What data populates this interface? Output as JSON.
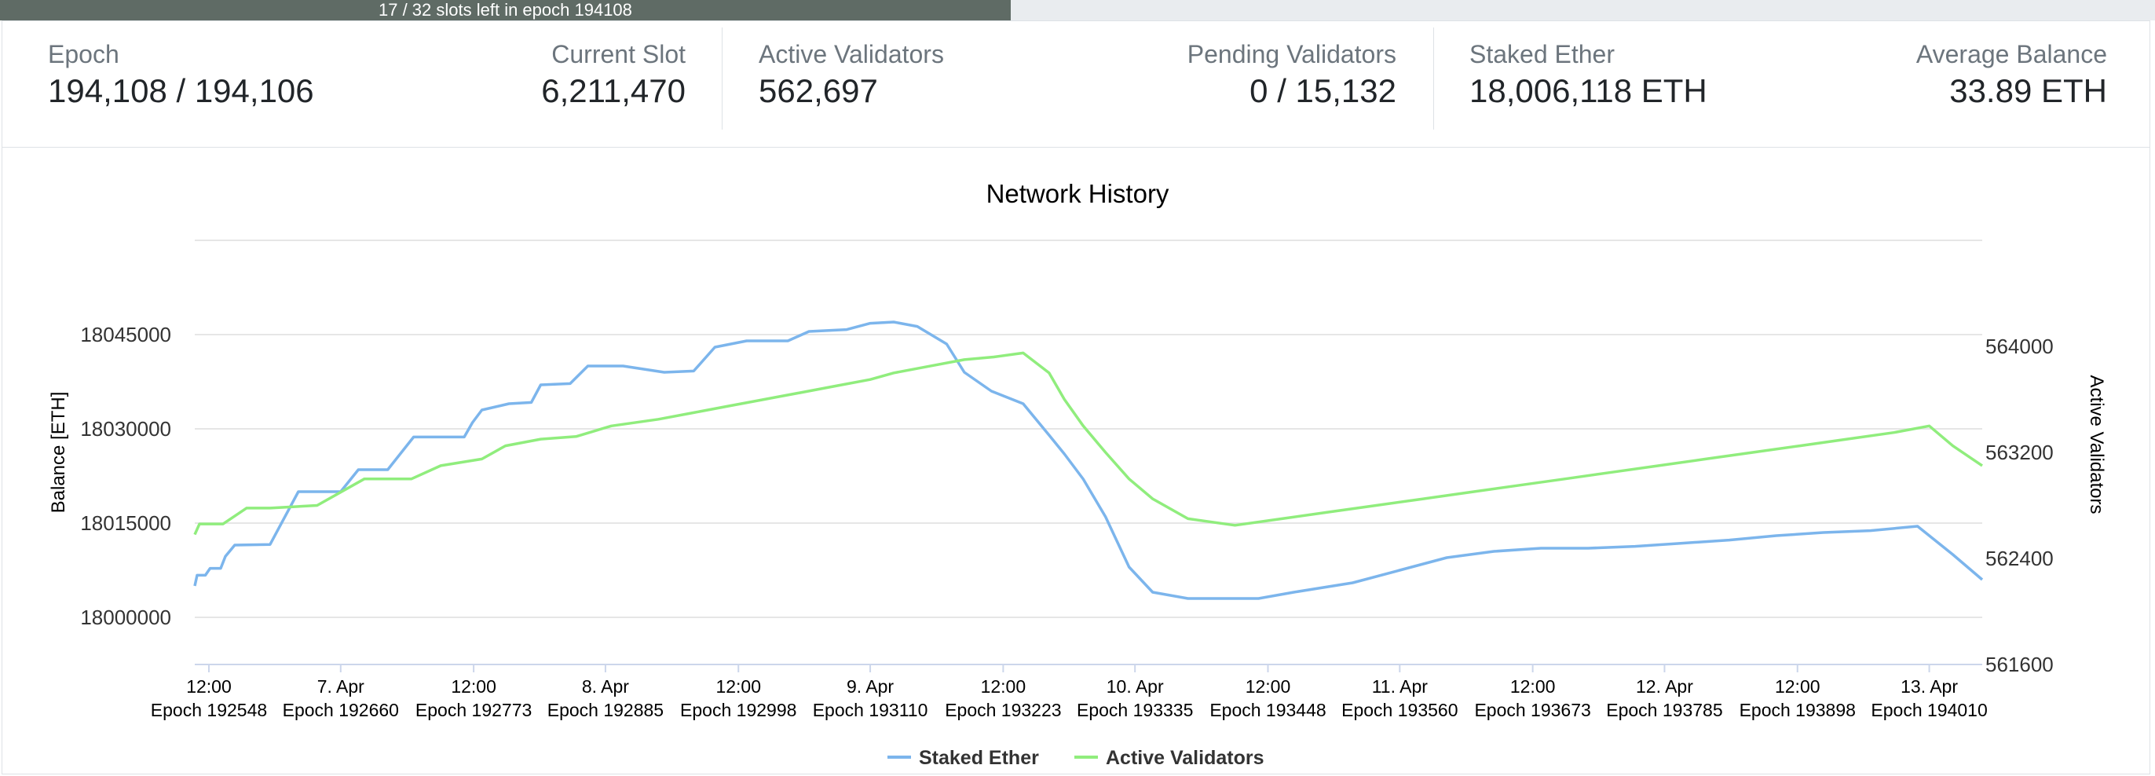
{
  "progress": {
    "text": "17 / 32 slots left in epoch 194108",
    "fraction": 0.469
  },
  "stats": {
    "epoch": {
      "label": "Epoch",
      "value": "194,108 / 194,106"
    },
    "current_slot": {
      "label": "Current Slot",
      "value": "6,211,470"
    },
    "active_validators": {
      "label": "Active Validators",
      "value": "562,697"
    },
    "pending_validators": {
      "label": "Pending Validators",
      "value": "0 / 15,132"
    },
    "staked_ether": {
      "label": "Staked Ether",
      "value": "18,006,118 ETH"
    },
    "average_balance": {
      "label": "Average Balance",
      "value": "33.89 ETH"
    }
  },
  "colors": {
    "staked_ether": "#7cb5ec",
    "active_validators": "#90ed7d",
    "progress": "#5f6b65"
  },
  "chart_data": {
    "type": "line",
    "title": "Network History",
    "ylabel_left": "Balance [ETH]",
    "ylabel_right": "Active Validators",
    "ylim_left": [
      17992500,
      18060000
    ],
    "ylim_right": [
      561600,
      564800
    ],
    "yticks_left": [
      18000000,
      18015000,
      18030000,
      18045000
    ],
    "yticks_right": [
      561600,
      562400,
      563200,
      564000
    ],
    "x_ticks": [
      [
        "12:00",
        "Epoch 192548"
      ],
      [
        "7. Apr",
        "Epoch 192660"
      ],
      [
        "12:00",
        "Epoch 192773"
      ],
      [
        "8. Apr",
        "Epoch 192885"
      ],
      [
        "12:00",
        "Epoch 192998"
      ],
      [
        "9. Apr",
        "Epoch 193110"
      ],
      [
        "12:00",
        "Epoch 193223"
      ],
      [
        "10. Apr",
        "Epoch 193335"
      ],
      [
        "12:00",
        "Epoch 193448"
      ],
      [
        "11. Apr",
        "Epoch 193560"
      ],
      [
        "12:00",
        "Epoch 193673"
      ],
      [
        "12. Apr",
        "Epoch 193785"
      ],
      [
        "12:00",
        "Epoch 193898"
      ],
      [
        "13. Apr",
        "Epoch 194010"
      ]
    ],
    "x_tick_epochs": [
      192548,
      192660,
      192773,
      192885,
      192998,
      193110,
      193223,
      193335,
      193448,
      193560,
      193673,
      193785,
      193898,
      194010
    ],
    "x_range_epochs": [
      192536,
      194055
    ],
    "series": [
      {
        "name": "Staked Ether",
        "axis": "left",
        "points": [
          [
            192536,
            18005000
          ],
          [
            192538,
            18006700
          ],
          [
            192545,
            18006700
          ],
          [
            192549,
            18007800
          ],
          [
            192558,
            18007800
          ],
          [
            192562,
            18009700
          ],
          [
            192570,
            18011500
          ],
          [
            192600,
            18011600
          ],
          [
            192624,
            18020000
          ],
          [
            192660,
            18020000
          ],
          [
            192675,
            18023500
          ],
          [
            192700,
            18023500
          ],
          [
            192722,
            18028700
          ],
          [
            192765,
            18028700
          ],
          [
            192772,
            18031000
          ],
          [
            192780,
            18033000
          ],
          [
            192803,
            18034000
          ],
          [
            192822,
            18034200
          ],
          [
            192830,
            18037000
          ],
          [
            192855,
            18037200
          ],
          [
            192870,
            18040000
          ],
          [
            192900,
            18040000
          ],
          [
            192935,
            18039000
          ],
          [
            192960,
            18039200
          ],
          [
            192978,
            18043000
          ],
          [
            193005,
            18044000
          ],
          [
            193040,
            18044000
          ],
          [
            193058,
            18045500
          ],
          [
            193090,
            18045800
          ],
          [
            193110,
            18046800
          ],
          [
            193130,
            18047000
          ],
          [
            193150,
            18046300
          ],
          [
            193175,
            18043500
          ],
          [
            193190,
            18039000
          ],
          [
            193213,
            18036000
          ],
          [
            193240,
            18034000
          ],
          [
            193262,
            18029000
          ],
          [
            193275,
            18026000
          ],
          [
            193291,
            18022000
          ],
          [
            193310,
            18016000
          ],
          [
            193330,
            18008000
          ],
          [
            193350,
            18004000
          ],
          [
            193380,
            18003000
          ],
          [
            193440,
            18003000
          ],
          [
            193470,
            18004000
          ],
          [
            193520,
            18005500
          ],
          [
            193560,
            18007500
          ],
          [
            193600,
            18009500
          ],
          [
            193640,
            18010500
          ],
          [
            193680,
            18011000
          ],
          [
            193720,
            18011000
          ],
          [
            193760,
            18011300
          ],
          [
            193800,
            18011800
          ],
          [
            193840,
            18012300
          ],
          [
            193880,
            18013000
          ],
          [
            193920,
            18013500
          ],
          [
            193960,
            18013800
          ],
          [
            194000,
            18014500
          ],
          [
            194030,
            18010000
          ],
          [
            194055,
            18006000
          ]
        ]
      },
      {
        "name": "Active Validators",
        "axis": "right",
        "points": [
          [
            192536,
            562580
          ],
          [
            192540,
            562660
          ],
          [
            192560,
            562660
          ],
          [
            192580,
            562780
          ],
          [
            192600,
            562780
          ],
          [
            192640,
            562800
          ],
          [
            192680,
            563000
          ],
          [
            192720,
            563000
          ],
          [
            192745,
            563100
          ],
          [
            192780,
            563150
          ],
          [
            192800,
            563250
          ],
          [
            192830,
            563300
          ],
          [
            192860,
            563320
          ],
          [
            192890,
            563400
          ],
          [
            192930,
            563450
          ],
          [
            192960,
            563500
          ],
          [
            192990,
            563550
          ],
          [
            193020,
            563600
          ],
          [
            193050,
            563650
          ],
          [
            193080,
            563700
          ],
          [
            193110,
            563750
          ],
          [
            193130,
            563800
          ],
          [
            193160,
            563850
          ],
          [
            193190,
            563900
          ],
          [
            193215,
            563920
          ],
          [
            193240,
            563950
          ],
          [
            193262,
            563800
          ],
          [
            193275,
            563600
          ],
          [
            193291,
            563400
          ],
          [
            193310,
            563200
          ],
          [
            193330,
            563000
          ],
          [
            193350,
            562850
          ],
          [
            193380,
            562700
          ],
          [
            193420,
            562650
          ],
          [
            193460,
            562700
          ],
          [
            193500,
            562750
          ],
          [
            193540,
            562800
          ],
          [
            193580,
            562850
          ],
          [
            193620,
            562900
          ],
          [
            193660,
            562950
          ],
          [
            193700,
            563000
          ],
          [
            193740,
            563050
          ],
          [
            193780,
            563100
          ],
          [
            193820,
            563150
          ],
          [
            193860,
            563200
          ],
          [
            193900,
            563250
          ],
          [
            193940,
            563300
          ],
          [
            193980,
            563350
          ],
          [
            194010,
            563400
          ],
          [
            194030,
            563250
          ],
          [
            194055,
            563100
          ]
        ]
      }
    ],
    "legend": "bottom-center"
  }
}
